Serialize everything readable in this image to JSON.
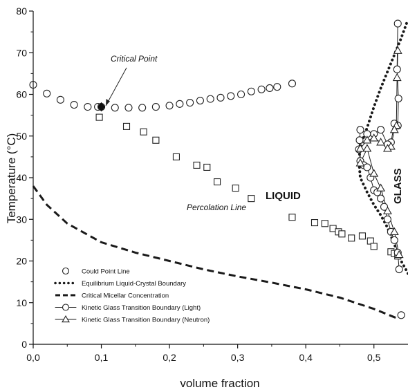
{
  "chart_data": {
    "type": "scatter",
    "xlabel": "volume fraction",
    "ylabel": "Temperature (°C)",
    "xlim": [
      0.0,
      0.55
    ],
    "ylim": [
      0,
      80
    ],
    "x_ticks": [
      "0,0",
      "0,1",
      "0,2",
      "0,3",
      "0,4",
      "0,5"
    ],
    "y_ticks": [
      "0",
      "10",
      "20",
      "30",
      "40",
      "50",
      "60",
      "70",
      "80"
    ],
    "grid": false,
    "legend": "bottom-left",
    "annotations": {
      "critical_point": "Critical Point",
      "percolation_line": "Percolation Line",
      "liquid": "LIQUID",
      "glass": "GLASS"
    },
    "critical_point": {
      "x": 0.1,
      "y": 57
    },
    "series": [
      {
        "name": "Could Point Line",
        "marker": "circle",
        "x": [
          0.0,
          0.02,
          0.04,
          0.06,
          0.08,
          0.095,
          0.1,
          0.12,
          0.14,
          0.16,
          0.18,
          0.2,
          0.215,
          0.23,
          0.245,
          0.26,
          0.275,
          0.29,
          0.305,
          0.32,
          0.335,
          0.347,
          0.358,
          0.38,
          0.54
        ],
        "y": [
          62.3,
          60.2,
          58.7,
          57.5,
          57.0,
          57.0,
          57.0,
          56.8,
          56.8,
          56.8,
          57.0,
          57.3,
          57.7,
          58.0,
          58.5,
          58.9,
          59.2,
          59.6,
          60.0,
          60.7,
          61.2,
          61.5,
          61.8,
          62.6,
          7.0
        ]
      },
      {
        "name": "Percolation Line",
        "marker": "square",
        "x": [
          0.097,
          0.137,
          0.162,
          0.18,
          0.21,
          0.24,
          0.255,
          0.27,
          0.297,
          0.32,
          0.38,
          0.413,
          0.428,
          0.44,
          0.448,
          0.453,
          0.467,
          0.483,
          0.495,
          0.5,
          0.525,
          0.53,
          0.535
        ],
        "y": [
          54.5,
          52.3,
          51.0,
          49.0,
          45.0,
          43.0,
          42.5,
          39.0,
          37.5,
          35.0,
          30.5,
          29.2,
          29.0,
          27.8,
          27.0,
          26.5,
          25.5,
          26.0,
          24.8,
          23.5,
          22.2,
          21.8,
          21.2
        ]
      },
      {
        "name": "Equilibrium Liquid-Crystal Boundary",
        "line": "dotted",
        "x": [
          0.55,
          0.545,
          0.54,
          0.535,
          0.53,
          0.52,
          0.51,
          0.5,
          0.49,
          0.48,
          0.478,
          0.48,
          0.49,
          0.5,
          0.51,
          0.52,
          0.53,
          0.54,
          0.55
        ],
        "y": [
          17.0,
          18.5,
          20.0,
          22.0,
          24.0,
          28.0,
          31.0,
          33.5,
          36.5,
          40.0,
          44.0,
          47.5,
          52.0,
          57.0,
          61.5,
          65.5,
          69.5,
          73.5,
          78.0
        ]
      },
      {
        "name": "Critical Micellar Concentration",
        "line": "dashed",
        "x": [
          0.0,
          0.02,
          0.05,
          0.1,
          0.15,
          0.2,
          0.25,
          0.3,
          0.35,
          0.4,
          0.45,
          0.5,
          0.53,
          0.537
        ],
        "y": [
          38.0,
          33.5,
          29.0,
          24.5,
          22.0,
          20.0,
          18.0,
          16.3,
          14.8,
          13.2,
          11.2,
          8.5,
          6.5,
          6.0
        ]
      },
      {
        "name": "Kinetic Glass Transition Boundary (Light)",
        "marker": "circle",
        "line": "solid",
        "x": [
          0.535,
          0.534,
          0.536,
          0.535,
          0.53,
          0.525,
          0.52,
          0.51,
          0.5,
          0.49,
          0.48,
          0.479,
          0.478,
          0.48,
          0.485,
          0.49,
          0.495,
          0.5,
          0.505,
          0.51,
          0.515,
          0.52,
          0.525,
          0.53,
          0.535,
          0.537
        ],
        "y": [
          77.0,
          66.0,
          59.0,
          52.5,
          53.0,
          48.5,
          48.0,
          51.5,
          50.5,
          50.5,
          51.5,
          49.0,
          46.8,
          44.0,
          43.0,
          42.5,
          40.0,
          37.0,
          36.5,
          35.0,
          33.0,
          30.0,
          27.0,
          25.0,
          22.0,
          18.0
        ]
      },
      {
        "name": "Kinetic Glass Transition Boundary (Neutron)",
        "marker": "triangle",
        "line": "solid",
        "x": [
          0.535,
          0.534,
          0.533,
          0.53,
          0.525,
          0.52,
          0.51,
          0.5,
          0.49,
          0.48,
          0.48,
          0.49,
          0.5,
          0.51,
          0.52,
          0.53,
          0.537
        ],
        "y": [
          70.5,
          64.0,
          52.5,
          51.5,
          47.5,
          47.0,
          48.5,
          49.5,
          49.0,
          47.0,
          43.5,
          47.0,
          41.0,
          37.5,
          32.0,
          27.0,
          21.5
        ]
      }
    ]
  }
}
